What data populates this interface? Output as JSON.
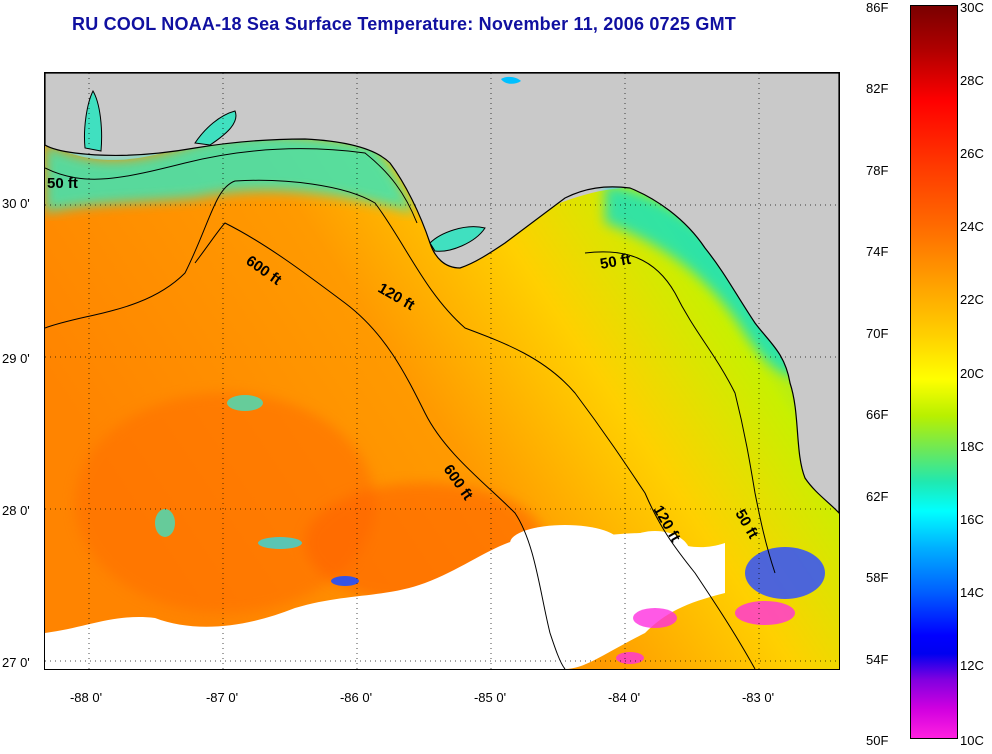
{
  "title": "RU COOL  NOAA-18  Sea Surface Temperature:  November 11, 2006 0725 GMT",
  "map": {
    "latitude_labels": [
      "30 0'",
      "29 0'",
      "28 0'",
      "27 0'"
    ],
    "longitude_labels": [
      "-88 0'",
      "-87 0'",
      "-86 0'",
      "-85 0'",
      "-84 0'",
      "-83 0'"
    ],
    "contour_labels": [
      "50 ft",
      "600 ft",
      "120 ft",
      "50 ft",
      "600 ft",
      "120 ft",
      "50 ft"
    ],
    "colors": {
      "land": "#c9c9c9",
      "cloud": "#ffffff",
      "warm_water": "#ff8000",
      "mid_water": "#ffd800",
      "cool_water": "#40e8c0",
      "coastline": "#000000"
    }
  },
  "colorbar": {
    "fahrenheit_labels": [
      "86F",
      "82F",
      "78F",
      "74F",
      "70F",
      "66F",
      "62F",
      "58F",
      "54F",
      "50F"
    ],
    "celsius_labels": [
      "30C",
      "28C",
      "26C",
      "24C",
      "22C",
      "20C",
      "18C",
      "16C",
      "14C",
      "12C",
      "10C"
    ]
  }
}
